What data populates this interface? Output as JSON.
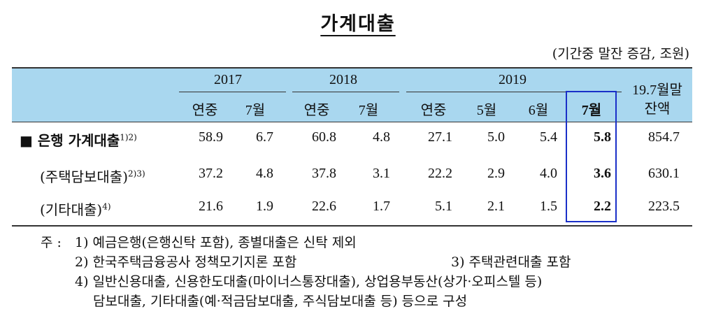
{
  "title": "가계대출",
  "unit": "(기간중 말잔 증감, 조원)",
  "years": [
    "2017",
    "2018",
    "2019"
  ],
  "balance_header": [
    "19.7월말",
    "잔액"
  ],
  "subheaders": [
    "연중",
    "7월",
    "연중",
    "7월",
    "연중",
    "5월",
    "6월",
    "7월"
  ],
  "rows": [
    {
      "label": "■ 은행 가계대출",
      "note": "1)2)",
      "values": [
        "58.9",
        "6.7",
        "60.8",
        "4.8",
        "27.1",
        "5.0",
        "5.4",
        "5.8",
        "854.7"
      ]
    },
    {
      "label": "(주택담보대출)",
      "note": "2)3)",
      "values": [
        "37.2",
        "4.8",
        "37.8",
        "3.1",
        "22.2",
        "2.9",
        "4.0",
        "3.6",
        "630.1"
      ]
    },
    {
      "label": "(기타대출)",
      "note": "4)",
      "values": [
        "21.6",
        "1.9",
        "22.6",
        "1.7",
        "5.1",
        "2.1",
        "1.5",
        "2.2",
        "223.5"
      ]
    }
  ],
  "notes": {
    "prefix": "주 :",
    "n1": "1) 예금은행(은행신탁 포함), 종별대출은 신탁 제외",
    "n2": "2) 한국주택금융공사 정책모기지론 포함",
    "n3": "3) 주택관련대출 포함",
    "n4_line1": "4) 일반신용대출, 신용한도대출(마이너스통장대출), 상업용부동산(상가·오피스텔 등)",
    "n4_line2": "담보대출, 기타대출(예·적금담보대출, 주식담보대출 등) 등으로 구성"
  },
  "colors": {
    "header_bg": "#a9d7ef",
    "highlight_border": "#1a2fc8"
  }
}
